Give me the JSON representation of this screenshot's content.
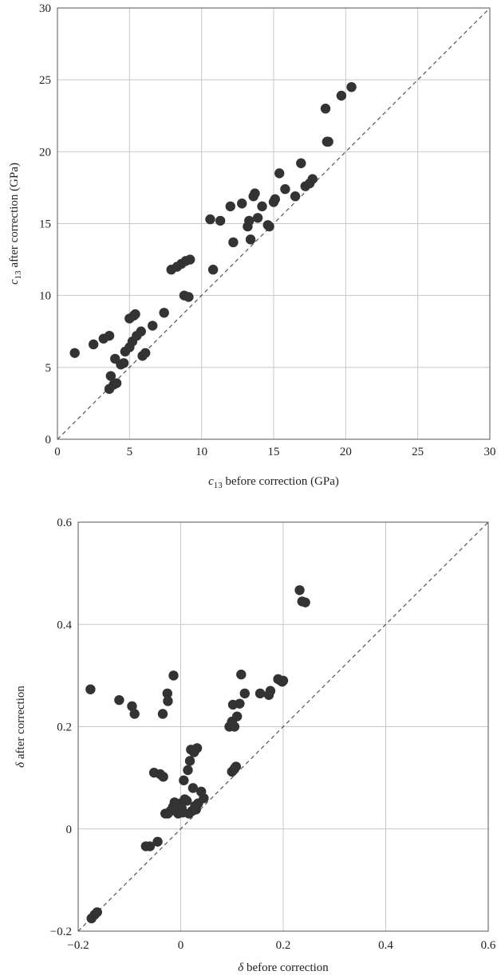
{
  "chart_data": [
    {
      "type": "scatter",
      "title": "",
      "xlabel": {
        "italic": "c",
        "sub": "13",
        "rest": " before correction (GPa)"
      },
      "ylabel": {
        "italic": "c",
        "sub": "13",
        "rest": " after correction (GPa)"
      },
      "xlim": [
        0,
        30
      ],
      "ylim": [
        0,
        30
      ],
      "xticks": [
        0,
        5,
        10,
        15,
        20,
        25,
        30
      ],
      "yticks": [
        0,
        5,
        10,
        15,
        20,
        25,
        30
      ],
      "xtick_labels": [
        "0",
        "5",
        "10",
        "15",
        "20",
        "25",
        "30"
      ],
      "ytick_labels": [
        "0",
        "5",
        "10",
        "15",
        "20",
        "25",
        "30"
      ],
      "grid": true,
      "reference_line": "y = x (dashed)",
      "color": "#333333",
      "points": [
        [
          1.2,
          6.0
        ],
        [
          2.5,
          6.6
        ],
        [
          3.2,
          7.0
        ],
        [
          3.6,
          7.2
        ],
        [
          3.6,
          3.5
        ],
        [
          3.7,
          4.4
        ],
        [
          3.9,
          3.8
        ],
        [
          4.1,
          3.9
        ],
        [
          4.0,
          5.6
        ],
        [
          4.4,
          5.2
        ],
        [
          4.6,
          5.3
        ],
        [
          4.7,
          6.1
        ],
        [
          5.0,
          6.4
        ],
        [
          5.0,
          8.4
        ],
        [
          5.3,
          8.6
        ],
        [
          5.4,
          8.7
        ],
        [
          5.2,
          6.8
        ],
        [
          5.5,
          7.2
        ],
        [
          5.8,
          7.5
        ],
        [
          5.9,
          5.8
        ],
        [
          6.1,
          6.0
        ],
        [
          6.6,
          7.9
        ],
        [
          7.4,
          8.8
        ],
        [
          7.9,
          11.8
        ],
        [
          8.3,
          12.0
        ],
        [
          8.6,
          12.2
        ],
        [
          8.9,
          12.4
        ],
        [
          9.2,
          12.5
        ],
        [
          8.8,
          10.0
        ],
        [
          9.1,
          9.9
        ],
        [
          10.6,
          15.3
        ],
        [
          10.8,
          11.8
        ],
        [
          11.3,
          15.2
        ],
        [
          12.0,
          16.2
        ],
        [
          12.2,
          13.7
        ],
        [
          12.8,
          16.4
        ],
        [
          13.2,
          14.8
        ],
        [
          13.3,
          15.2
        ],
        [
          13.4,
          13.9
        ],
        [
          13.6,
          16.9
        ],
        [
          13.7,
          17.1
        ],
        [
          13.9,
          15.4
        ],
        [
          14.2,
          16.2
        ],
        [
          14.6,
          14.9
        ],
        [
          14.7,
          14.8
        ],
        [
          15.0,
          16.5
        ],
        [
          15.1,
          16.7
        ],
        [
          15.4,
          18.5
        ],
        [
          15.8,
          17.4
        ],
        [
          16.5,
          16.9
        ],
        [
          16.9,
          19.2
        ],
        [
          17.2,
          17.6
        ],
        [
          17.5,
          17.8
        ],
        [
          17.7,
          18.1
        ],
        [
          18.6,
          23.0
        ],
        [
          18.7,
          20.7
        ],
        [
          18.8,
          20.7
        ],
        [
          19.7,
          23.9
        ],
        [
          20.4,
          24.5
        ]
      ]
    },
    {
      "type": "scatter",
      "title": "",
      "xlabel": {
        "italic": "δ",
        "rest": " before correction"
      },
      "ylabel": {
        "italic": "δ",
        "rest": " after correction"
      },
      "xlim": [
        -0.2,
        0.6
      ],
      "ylim": [
        -0.2,
        0.6
      ],
      "xticks": [
        -0.2,
        0,
        0.2,
        0.4,
        0.6
      ],
      "yticks": [
        -0.2,
        0,
        0.2,
        0.4,
        0.6
      ],
      "xtick_labels": [
        "−0.2",
        "0",
        "0.2",
        "0.4",
        "0.6"
      ],
      "ytick_labels": [
        "−0.2",
        "0",
        "0.2",
        "0.4",
        "0.6"
      ],
      "grid": true,
      "reference_line": "y = x (dashed)",
      "color": "#333333",
      "points": [
        [
          -0.176,
          0.273
        ],
        [
          -0.174,
          -0.175
        ],
        [
          -0.168,
          -0.168
        ],
        [
          -0.163,
          -0.163
        ],
        [
          -0.12,
          0.252
        ],
        [
          -0.095,
          0.24
        ],
        [
          -0.09,
          0.225
        ],
        [
          -0.068,
          -0.034
        ],
        [
          -0.06,
          -0.034
        ],
        [
          -0.052,
          0.11
        ],
        [
          -0.04,
          0.107
        ],
        [
          -0.035,
          0.225
        ],
        [
          -0.034,
          0.102
        ],
        [
          -0.045,
          -0.025
        ],
        [
          -0.03,
          0.03
        ],
        [
          -0.025,
          0.03
        ],
        [
          -0.026,
          0.265
        ],
        [
          -0.025,
          0.25
        ],
        [
          -0.02,
          0.035
        ],
        [
          -0.015,
          0.043
        ],
        [
          -0.014,
          0.3
        ],
        [
          -0.012,
          0.052
        ],
        [
          -0.005,
          0.03
        ],
        [
          0.0,
          0.05
        ],
        [
          0.002,
          0.04
        ],
        [
          0.004,
          0.032
        ],
        [
          0.006,
          0.095
        ],
        [
          0.008,
          0.058
        ],
        [
          0.012,
          0.055
        ],
        [
          0.014,
          0.115
        ],
        [
          0.016,
          0.03
        ],
        [
          0.018,
          0.133
        ],
        [
          0.02,
          0.155
        ],
        [
          0.022,
          0.035
        ],
        [
          0.024,
          0.08
        ],
        [
          0.026,
          0.15
        ],
        [
          0.028,
          0.045
        ],
        [
          0.03,
          0.038
        ],
        [
          0.032,
          0.158
        ],
        [
          0.034,
          0.05
        ],
        [
          0.04,
          0.073
        ],
        [
          0.045,
          0.06
        ],
        [
          0.095,
          0.2
        ],
        [
          0.1,
          0.21
        ],
        [
          0.1,
          0.112
        ],
        [
          0.102,
          0.243
        ],
        [
          0.105,
          0.118
        ],
        [
          0.105,
          0.2
        ],
        [
          0.108,
          0.122
        ],
        [
          0.11,
          0.22
        ],
        [
          0.115,
          0.245
        ],
        [
          0.118,
          0.302
        ],
        [
          0.125,
          0.265
        ],
        [
          0.155,
          0.265
        ],
        [
          0.172,
          0.262
        ],
        [
          0.175,
          0.27
        ],
        [
          0.19,
          0.293
        ],
        [
          0.195,
          0.29
        ],
        [
          0.198,
          0.288
        ],
        [
          0.2,
          0.29
        ],
        [
          0.232,
          0.467
        ],
        [
          0.237,
          0.445
        ],
        [
          0.243,
          0.443
        ]
      ]
    }
  ]
}
